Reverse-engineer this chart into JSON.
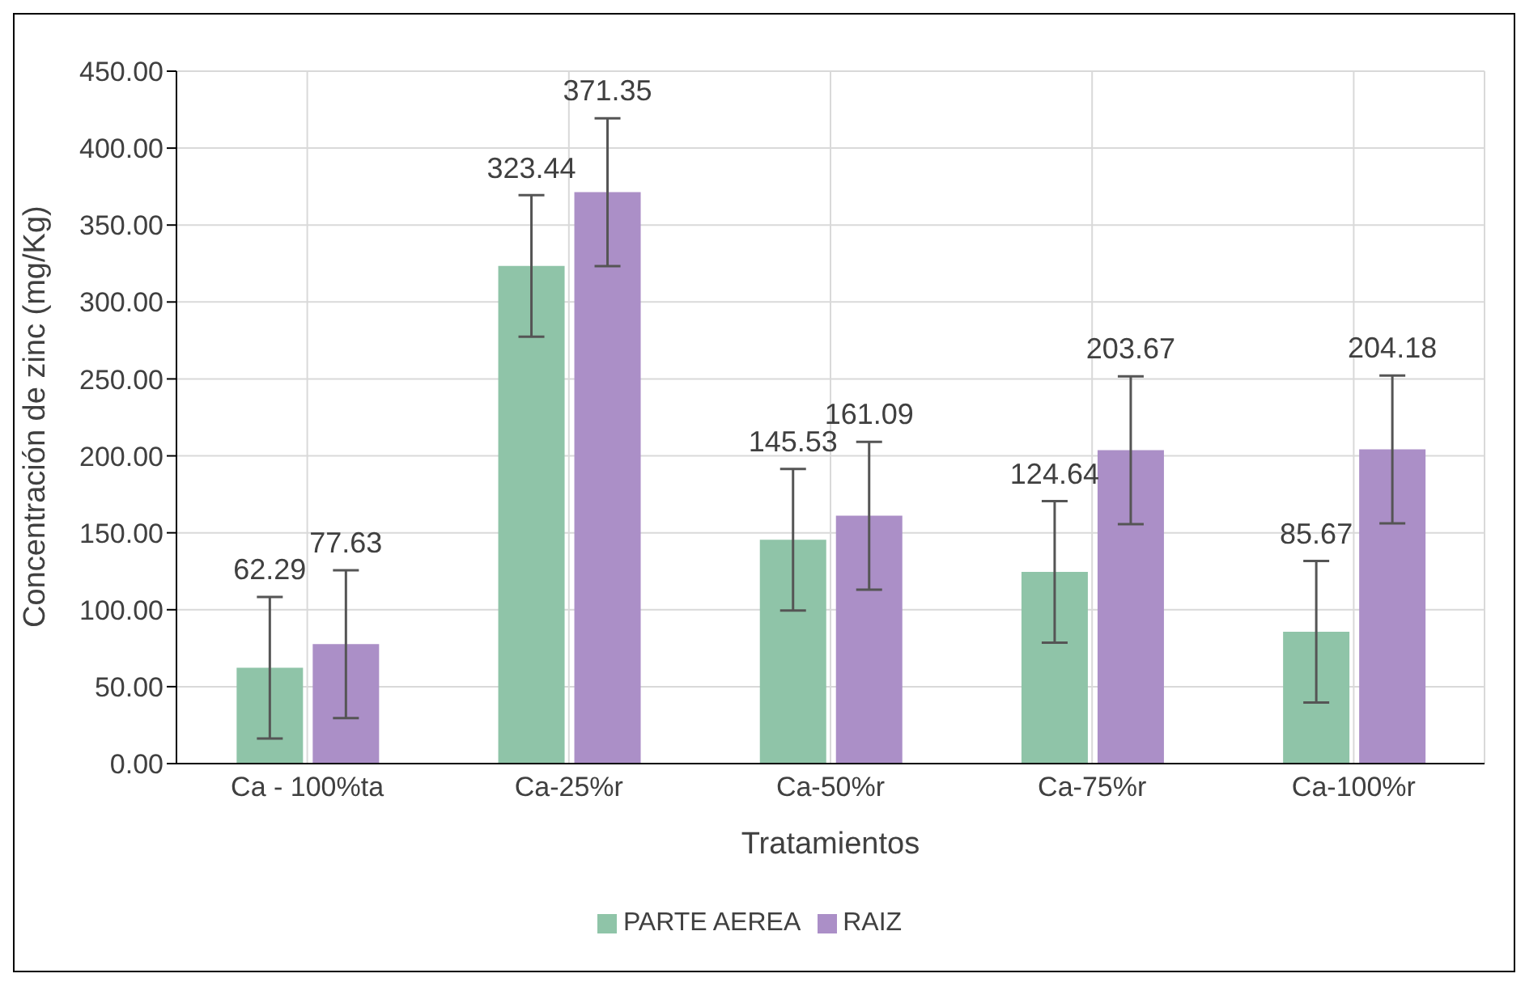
{
  "chart_data": {
    "type": "bar",
    "xlabel": "Tratamientos",
    "ylabel": "Concentración de zinc (mg/Kg)",
    "categories": [
      "Ca - 100%ta",
      "Ca-25%r",
      "Ca-50%r",
      "Ca-75%r",
      "Ca-100%r"
    ],
    "series": [
      {
        "name": "PARTE AEREA",
        "color": "#8fc4a8",
        "values": [
          62.29,
          323.44,
          145.53,
          124.64,
          85.67
        ],
        "errors": [
          46,
          46,
          46,
          46,
          46
        ]
      },
      {
        "name": "RAIZ",
        "color": "#ab8fc7",
        "values": [
          77.63,
          371.35,
          161.09,
          203.67,
          204.18
        ],
        "errors": [
          48,
          48,
          48,
          48,
          48
        ]
      }
    ],
    "ylim": [
      0,
      450
    ],
    "yticks": [
      {
        "value": 0,
        "label": "0.00"
      },
      {
        "value": 50,
        "label": "50.00"
      },
      {
        "value": 100,
        "label": "100.00"
      },
      {
        "value": 150,
        "label": "150.00"
      },
      {
        "value": 200,
        "label": "200.00"
      },
      {
        "value": 250,
        "label": "250.00"
      },
      {
        "value": 300,
        "label": "300.00"
      },
      {
        "value": 350,
        "label": "350.00"
      },
      {
        "value": 400,
        "label": "400.00"
      },
      {
        "value": 450,
        "label": "450.00"
      }
    ],
    "grid": true,
    "legend": "bottom",
    "data_labels": true
  }
}
